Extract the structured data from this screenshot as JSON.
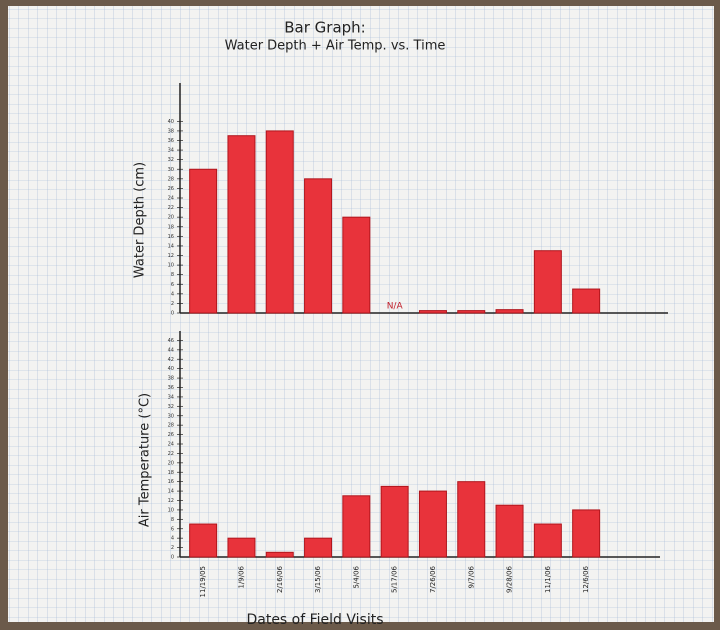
{
  "chart_data": [
    {
      "type": "bar",
      "title": "Bar Graph:",
      "subtitle": "Water Depth + Air Temp. vs. Time",
      "y_label": "Water Depth (cm)",
      "values": [
        30,
        37,
        38,
        28,
        20,
        null,
        0.5,
        0.5,
        0.7,
        13,
        5
      ],
      "value_labels": [
        null,
        null,
        null,
        null,
        null,
        "N/A",
        null,
        null,
        null,
        null,
        null
      ],
      "color": "#e8333b",
      "ylim": [
        0,
        48
      ],
      "yticks": [
        0,
        2,
        4,
        6,
        8,
        10,
        12,
        14,
        16,
        18,
        20,
        22,
        24,
        26,
        28,
        30,
        32,
        34,
        36,
        38,
        40
      ]
    },
    {
      "type": "bar",
      "y_label": "Air Temperature (°C)",
      "x_label": "Dates of Field Visits",
      "categories": [
        "11/19/05",
        "1/9/06",
        "2/16/06",
        "3/15/06",
        "5/4/06",
        "5/17/06",
        "7/26/06",
        "9/7/06",
        "9/28/06",
        "11/1/06",
        "12/6/06"
      ],
      "values": [
        7,
        4,
        1,
        4,
        13,
        15,
        14,
        16,
        11,
        7,
        10
      ],
      "color": "#e8333b",
      "ylim": [
        0,
        48
      ],
      "yticks": [
        0,
        2,
        4,
        6,
        8,
        10,
        12,
        14,
        16,
        18,
        20,
        22,
        24,
        26,
        28,
        30,
        32,
        34,
        36,
        38,
        40,
        42,
        44,
        46
      ]
    }
  ]
}
